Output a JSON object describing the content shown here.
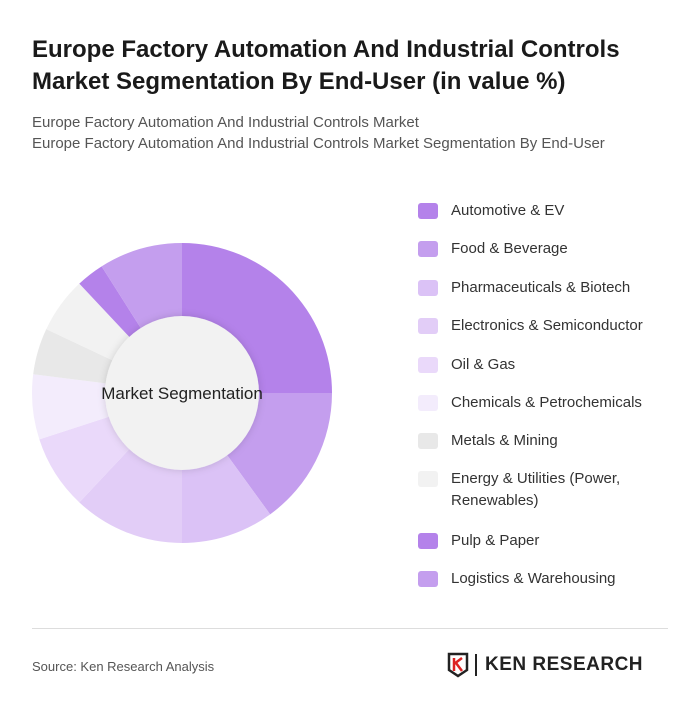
{
  "header": {
    "title": "Europe Factory Automation And Industrial Controls Market Segmentation By End-User (in value %)",
    "subtitle1": "Europe Factory Automation And Industrial Controls Market",
    "subtitle2": "Europe Factory Automation And Industrial Controls Market Segmentation By End-User"
  },
  "chart_data": {
    "type": "pie",
    "variant": "donut",
    "center_label": "Market Segmentation",
    "legend_position": "right",
    "categories": [
      "Automotive & EV",
      "Food & Beverage",
      "Pharmaceuticals & Biotech",
      "Electronics & Semiconductor",
      "Oil & Gas",
      "Chemicals & Petrochemicals",
      "Metals & Mining",
      "Energy & Utilities (Power, Renewables)",
      "Pulp & Paper",
      "Logistics & Warehousing"
    ],
    "values": [
      25,
      15,
      10,
      12,
      8,
      7,
      5,
      6,
      3,
      9
    ],
    "colors": [
      "#b482ea",
      "#c49eee",
      "#dbc2f6",
      "#e2cdf7",
      "#ead9fa",
      "#f3ecfc",
      "#e8e8e8",
      "#f2f2f2",
      "#b482ea",
      "#c49eee"
    ]
  },
  "footer": {
    "source": "Source: Ken Research Analysis",
    "logo_text": "KEN RESEARCH"
  }
}
